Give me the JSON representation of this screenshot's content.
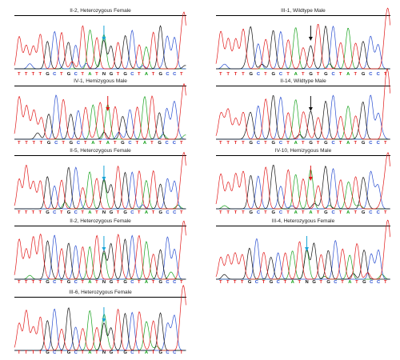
{
  "colors": {
    "A": "#19a31f",
    "C": "#2a4fd1",
    "G": "#111111",
    "T": "#e21b1b",
    "arrow_hom_mut": "#e01a1a",
    "arrow_het": "#1aa5d8",
    "arrow_wt": "#111111"
  },
  "panels": [
    {
      "id": "p1",
      "title": "II-2, Heterozygous Female",
      "sequence": "TTTTGCTGCTATNGTGCTATGCCT",
      "arrow": "het",
      "arrow_index": 12
    },
    {
      "id": "p2",
      "title": "III-1, Wildtype Male",
      "sequence": "TTTTGCTGCTATGTGCTATGCCT",
      "arrow": "wt",
      "arrow_index": 12
    },
    {
      "id": "p3",
      "title": "IV-1, Hemizygous Male",
      "sequence": "TTTTGCTGCTATATGCTATGCCT",
      "arrow": "hom_mut",
      "arrow_index": 12
    },
    {
      "id": "p4",
      "title": "II-14, Wildtype Male",
      "sequence": "TTTTGCTGCTATGTGCTATGCCT",
      "arrow": "wt",
      "arrow_index": 12
    },
    {
      "id": "p5",
      "title": "II-5, Heterozygous Female",
      "sequence": "TTTTGCTGCTATNGTGCTATGCCT",
      "arrow": "het",
      "arrow_index": 12
    },
    {
      "id": "p6",
      "title": "IV-10, Hemizygous Male",
      "sequence": "TTTTGCTGCTATATGCTATGCCT",
      "arrow": "hom_mut",
      "arrow_index": 12
    },
    {
      "id": "p7",
      "title": "II-2, Heterozygous Female",
      "sequence": "TTTTGCTGCTATNGTGCTATGCCT",
      "arrow": "het",
      "arrow_index": 12
    },
    {
      "id": "p8",
      "title": "III-4, Heterozygous Female",
      "sequence": "TTTTGCTGCTATNGTGCTATGCCT",
      "arrow": "het",
      "arrow_index": 12
    },
    {
      "id": "p9",
      "title": "III-6, Heterozygous Female",
      "sequence": "TTTTGCTGCTATNGTGCTATGCCT",
      "arrow": "het",
      "arrow_index": 12
    }
  ]
}
